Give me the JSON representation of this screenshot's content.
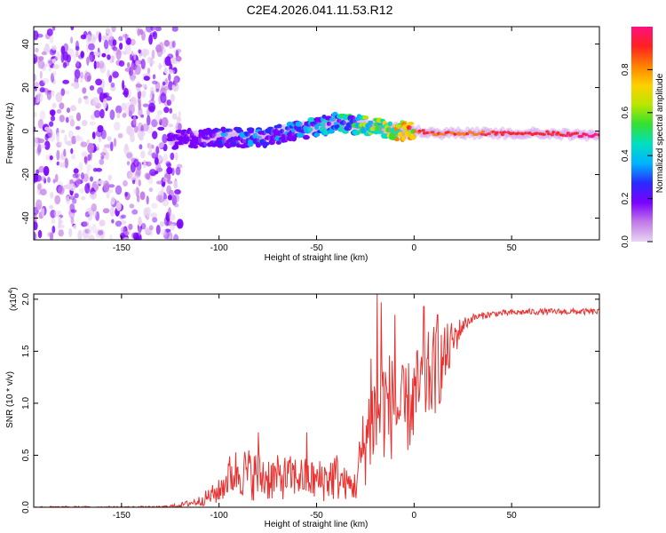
{
  "title": "C2E4.2026.041.11.53.R12",
  "colors": {
    "line": "#e8312f",
    "axis": "#000000",
    "colorbar_stops": [
      "#e8d4f2",
      "#c27ae8",
      "#7a00ff",
      "#2a2aff",
      "#00b3ff",
      "#00e0c0",
      "#33e033",
      "#b8e600",
      "#ffd000",
      "#ff8000",
      "#ff2020",
      "#ff1080"
    ]
  },
  "chart_data": [
    {
      "type": "heatmap",
      "name": "spectrogram",
      "xlabel": "Height of straight line (km)",
      "ylabel": "Frequency (Hz)",
      "xlim": [
        -195,
        95
      ],
      "ylim": [
        -50,
        48
      ],
      "xticks": [
        -150,
        -100,
        -50,
        0,
        50
      ],
      "yticks": [
        -40,
        -20,
        0,
        20,
        40
      ],
      "colorbar": {
        "label": "Normalized spectral amplitude",
        "range": [
          0.0,
          1.0
        ],
        "ticks": [
          "0.0",
          "0.2",
          "0.4",
          "0.6",
          "0.8"
        ]
      },
      "ridge": {
        "x": [
          -120,
          -100,
          -80,
          -60,
          -50,
          -40,
          -30,
          -20,
          -10,
          0,
          10,
          30,
          50,
          70,
          90
        ],
        "freq": [
          -4,
          -3,
          -3,
          0,
          2,
          4,
          3,
          2,
          0,
          0,
          -1,
          -1,
          -1,
          -1,
          -2
        ],
        "amplitude": [
          0.2,
          0.35,
          0.4,
          0.45,
          0.5,
          0.45,
          0.6,
          0.7,
          0.8,
          0.85,
          0.85,
          0.85,
          0.9,
          0.9,
          0.95
        ]
      }
    },
    {
      "type": "line",
      "name": "snr",
      "xlabel": "Height of straight line (km)",
      "ylabel": "SNR (10 * v/v)",
      "scale_label": "(x10",
      "scale_exp": "4",
      "scale_close": ")",
      "xlim": [
        -195,
        95
      ],
      "ylim": [
        0.0,
        2.05
      ],
      "xticks": [
        -150,
        -100,
        -50,
        0,
        50
      ],
      "yticks": [
        "0.0",
        "0.5",
        "1.0",
        "1.5",
        "2.0"
      ],
      "envelope": {
        "x": [
          -195,
          -130,
          -120,
          -110,
          -100,
          -95,
          -90,
          -80,
          -70,
          -60,
          -50,
          -40,
          -35,
          -30,
          -28,
          -25,
          -20,
          -15,
          -10,
          -5,
          0,
          5,
          10,
          15,
          20,
          25,
          30,
          40,
          50,
          60,
          70,
          80,
          95
        ],
        "mean": [
          0.0,
          0.0,
          0.02,
          0.06,
          0.15,
          0.3,
          0.35,
          0.3,
          0.28,
          0.3,
          0.25,
          0.3,
          0.22,
          0.2,
          0.4,
          0.65,
          0.9,
          1.0,
          0.95,
          0.9,
          1.05,
          1.2,
          1.3,
          1.4,
          1.6,
          1.75,
          1.82,
          1.86,
          1.87,
          1.88,
          1.88,
          1.88,
          1.88
        ],
        "spread": [
          0.01,
          0.01,
          0.02,
          0.05,
          0.12,
          0.2,
          0.25,
          0.25,
          0.22,
          0.2,
          0.2,
          0.25,
          0.15,
          0.15,
          0.3,
          0.45,
          0.6,
          0.55,
          0.5,
          0.45,
          0.45,
          0.45,
          0.45,
          0.35,
          0.2,
          0.08,
          0.04,
          0.03,
          0.03,
          0.03,
          0.03,
          0.03,
          0.03
        ]
      },
      "peaks": [
        {
          "x": -80,
          "y": 0.72
        },
        {
          "x": -55,
          "y": 0.72
        },
        {
          "x": -22,
          "y": 1.43
        },
        {
          "x": -19,
          "y": 2.05
        },
        {
          "x": -17,
          "y": 1.97
        },
        {
          "x": -10,
          "y": 1.85
        },
        {
          "x": 5,
          "y": 1.93
        },
        {
          "x": 12,
          "y": 1.85
        }
      ]
    }
  ]
}
